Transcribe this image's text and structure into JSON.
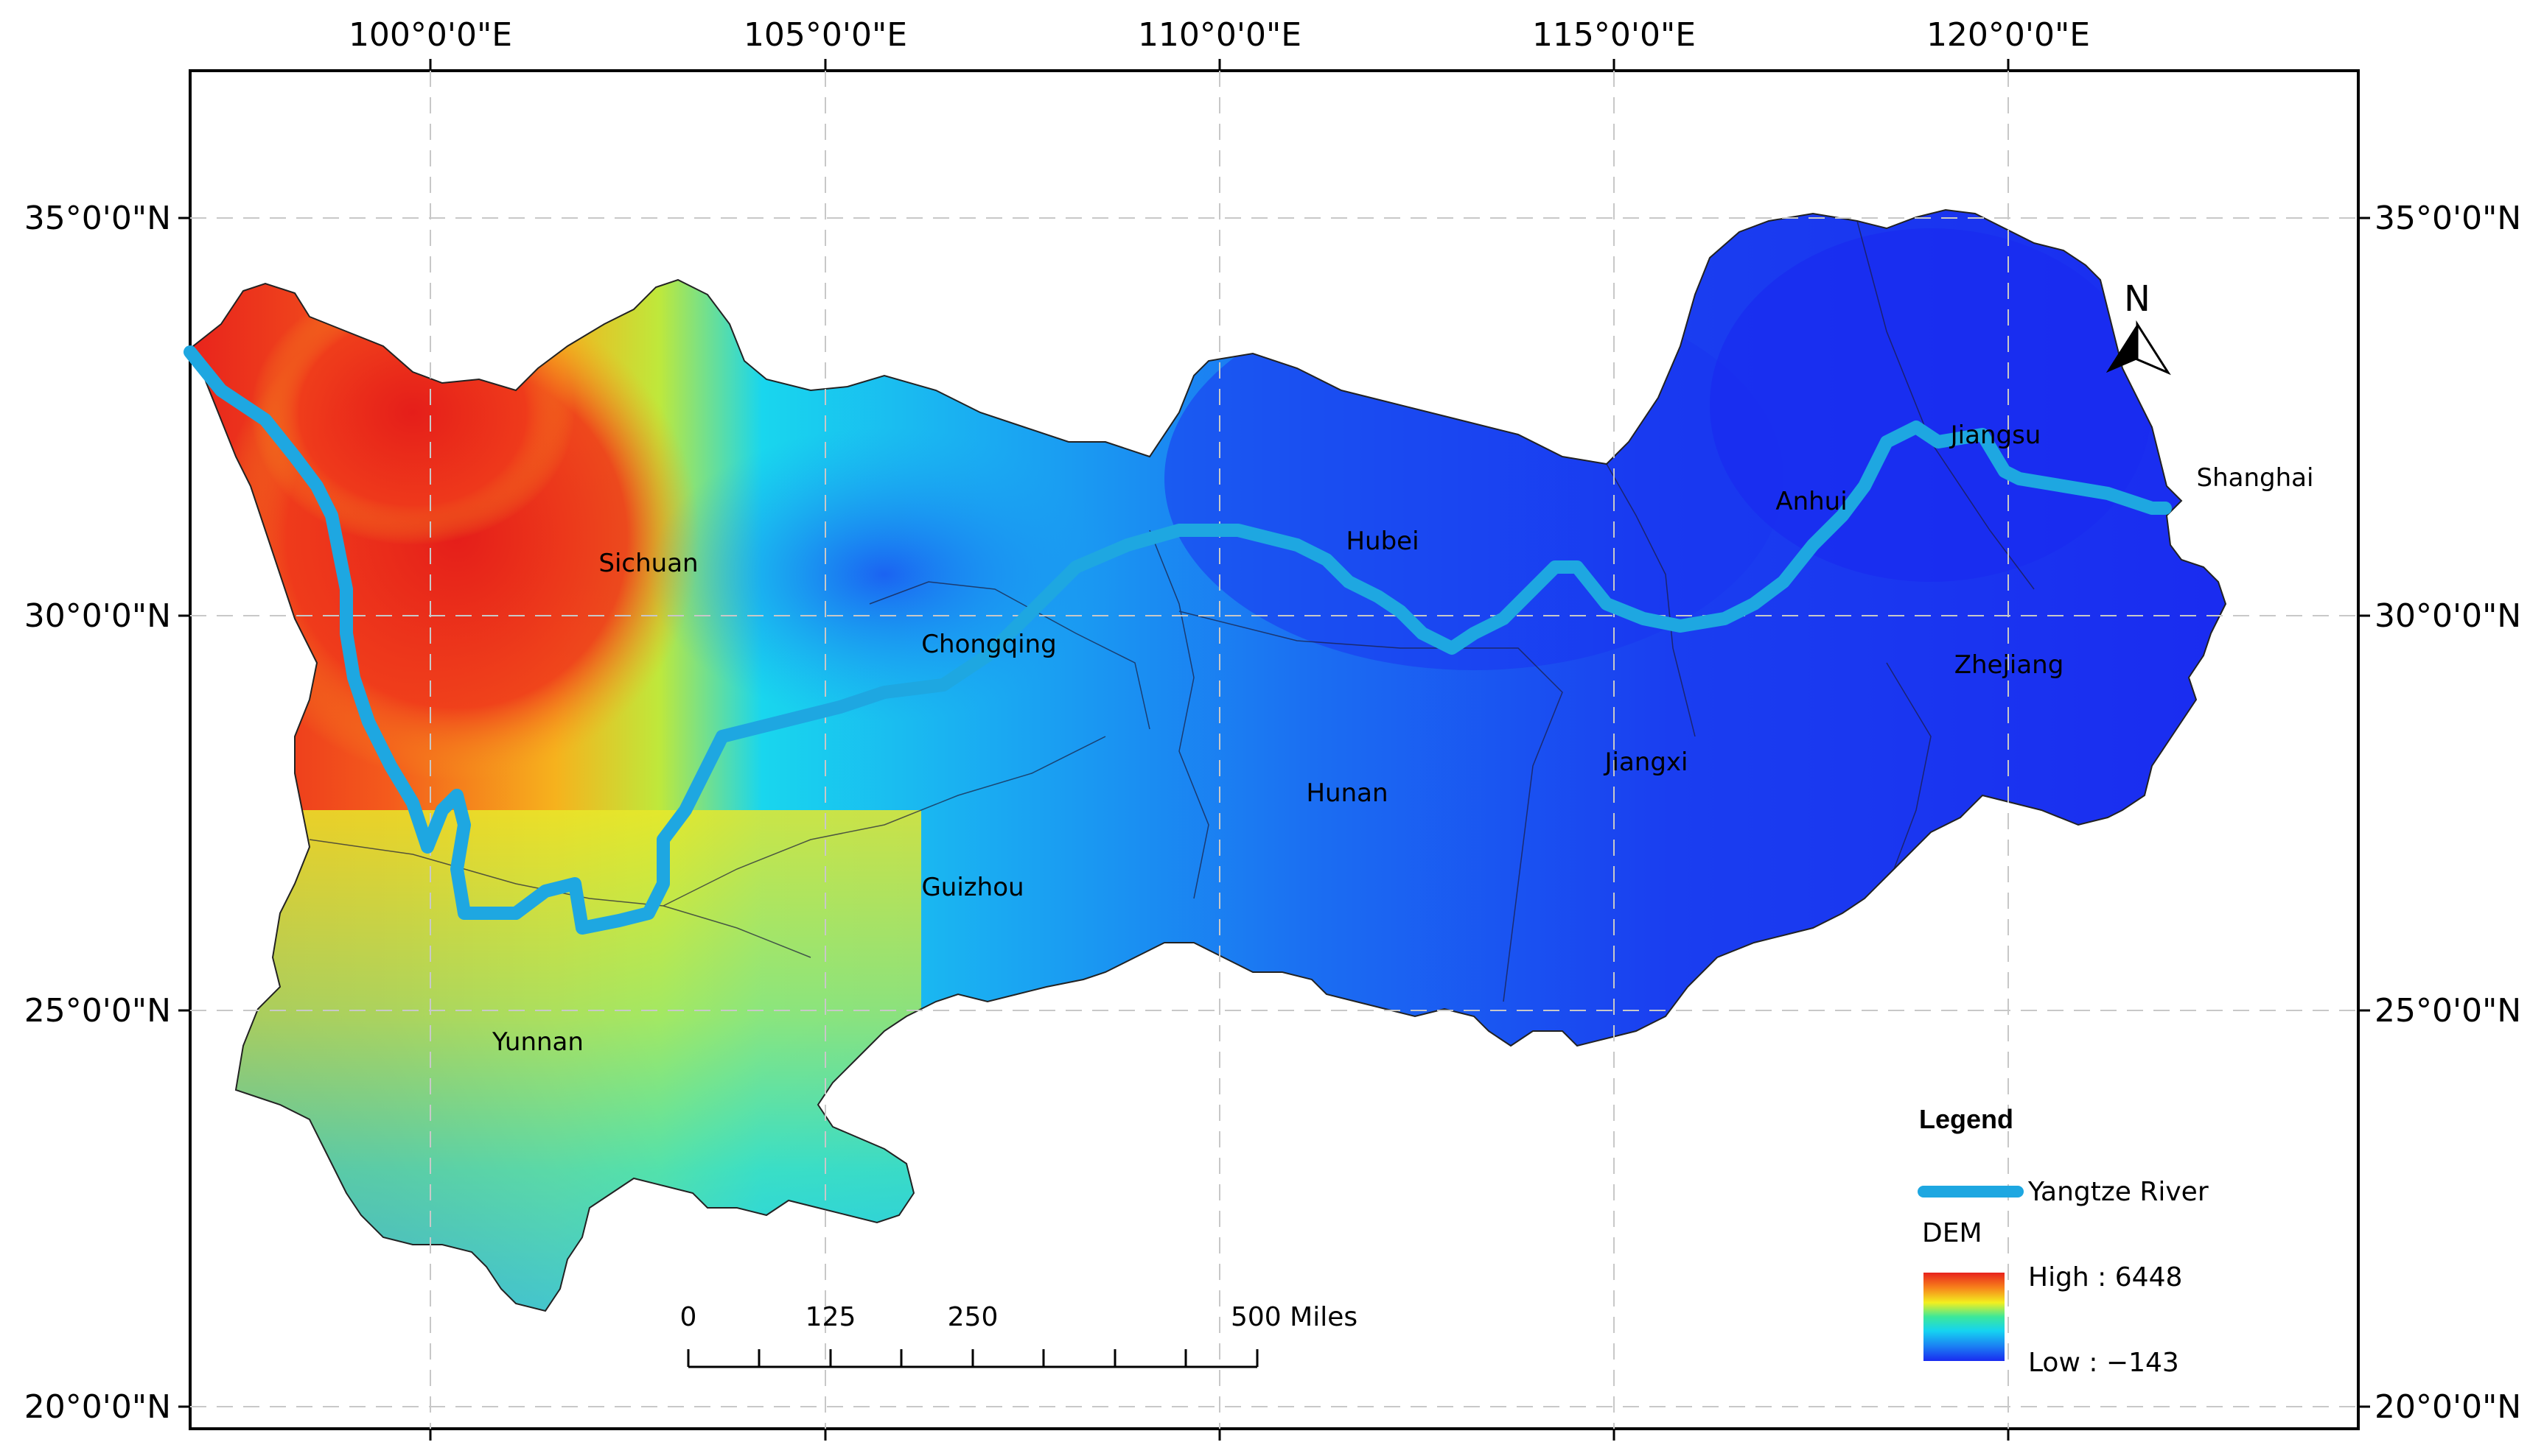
{
  "axes": {
    "top_labels": [
      "100°0'0\"E",
      "105°0'0\"E",
      "110°0'0\"E",
      "115°0'0\"E",
      "120°0'0\"E"
    ],
    "left_labels": [
      "35°0'0\"N",
      "30°0'0\"N",
      "25°0'0\"N",
      "20°0'0\"N"
    ],
    "right_labels": [
      "35°0'0\"N",
      "30°0'0\"N",
      "25°0'0\"N",
      "20°0'0\"N"
    ]
  },
  "provinces": {
    "sichuan": "Sichuan",
    "chongqing": "Chongqing",
    "hubei": "Hubei",
    "anhui": "Anhui",
    "jiangsu": "Jiangsu",
    "shanghai": "Shanghai",
    "zhejiang": "Zhejiang",
    "jiangxi": "Jiangxi",
    "hunan": "Hunan",
    "guizhou": "Guizhou",
    "yunnan": "Yunnan"
  },
  "north_arrow": {
    "label": "N",
    "icon": "north-arrow-icon"
  },
  "scale_bar": {
    "ticks": [
      "0",
      "125",
      "250",
      "500 Miles"
    ]
  },
  "legend": {
    "title": "Legend",
    "river_label": "Yangtze River",
    "river_color": "#1ea7e1",
    "dem_title": "DEM",
    "high_label": "High : 6448",
    "low_label": "Low : −143",
    "ramp_colors": [
      "#e8221c",
      "#f7821b",
      "#f3ef1f",
      "#3ce89a",
      "#15d3f1",
      "#1b82f3",
      "#1a2bf0"
    ]
  }
}
